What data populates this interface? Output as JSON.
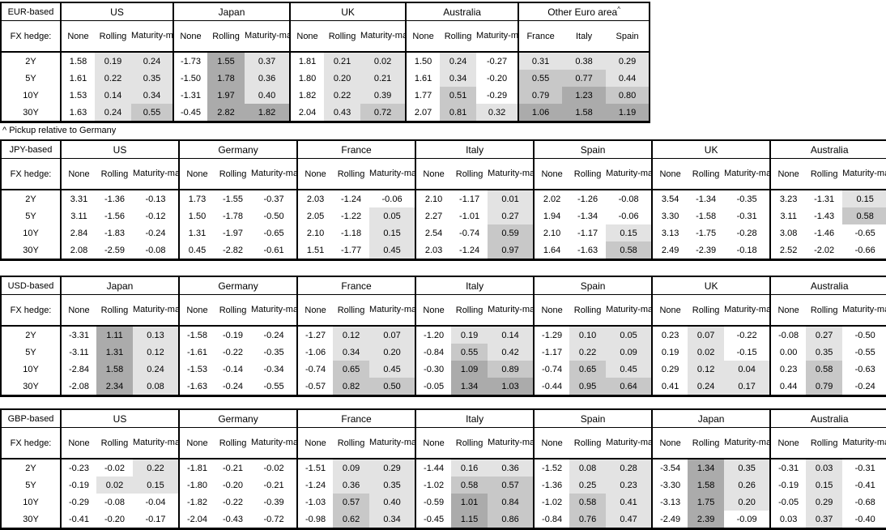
{
  "footnote": "^ Pickup relative to Germany",
  "legend": {
    "fx_hedge_label": "FX hedge:",
    "hedge_types": [
      "None",
      "Rolling",
      "Maturity-matched"
    ],
    "tenors": [
      "2Y",
      "5Y",
      "10Y",
      "30Y"
    ]
  },
  "shading": {
    "rule": "value<=0 white; 0<value<0.5 light; 0.5<=value<1.0 medium; value>=1.0 dark; None columns always white",
    "colors": {
      "white": "#ffffff",
      "light": "#e3e3e3",
      "medium": "#c8c8c8",
      "dark": "#ababab"
    }
  },
  "tables": [
    {
      "base": "EUR-based",
      "groups": [
        {
          "name": "US",
          "kind": "hedge",
          "rows": [
            [
              "1.58",
              "0.19",
              "0.24"
            ],
            [
              "1.61",
              "0.22",
              "0.35"
            ],
            [
              "1.53",
              "0.14",
              "0.34"
            ],
            [
              "1.63",
              "0.24",
              "0.55"
            ]
          ]
        },
        {
          "name": "Japan",
          "kind": "hedge",
          "rows": [
            [
              "-1.73",
              "1.55",
              "0.37"
            ],
            [
              "-1.50",
              "1.78",
              "0.36"
            ],
            [
              "-1.31",
              "1.97",
              "0.40"
            ],
            [
              "-0.45",
              "2.82",
              "1.82"
            ]
          ]
        },
        {
          "name": "UK",
          "kind": "hedge",
          "rows": [
            [
              "1.81",
              "0.21",
              "0.02"
            ],
            [
              "1.80",
              "0.20",
              "0.21"
            ],
            [
              "1.82",
              "0.22",
              "0.39"
            ],
            [
              "2.04",
              "0.43",
              "0.72"
            ]
          ]
        },
        {
          "name": "Australia",
          "kind": "hedge",
          "rows": [
            [
              "1.50",
              "0.24",
              "-0.27"
            ],
            [
              "1.61",
              "0.34",
              "-0.20"
            ],
            [
              "1.77",
              "0.51",
              "-0.29"
            ],
            [
              "2.07",
              "0.81",
              "0.32"
            ]
          ]
        },
        {
          "name": "Other Euro area",
          "sup": "^",
          "kind": "countries",
          "columns": [
            "France",
            "Italy",
            "Spain"
          ],
          "rows": [
            [
              "0.31",
              "0.38",
              "0.29"
            ],
            [
              "0.55",
              "0.77",
              "0.44"
            ],
            [
              "0.79",
              "1.23",
              "0.80"
            ],
            [
              "1.06",
              "1.58",
              "1.19"
            ]
          ]
        }
      ]
    },
    {
      "base": "JPY-based",
      "groups": [
        {
          "name": "US",
          "kind": "hedge",
          "rows": [
            [
              "3.31",
              "-1.36",
              "-0.13"
            ],
            [
              "3.11",
              "-1.56",
              "-0.12"
            ],
            [
              "2.84",
              "-1.83",
              "-0.24"
            ],
            [
              "2.08",
              "-2.59",
              "-0.08"
            ]
          ]
        },
        {
          "name": "Germany",
          "kind": "hedge",
          "rows": [
            [
              "1.73",
              "-1.55",
              "-0.37"
            ],
            [
              "1.50",
              "-1.78",
              "-0.50"
            ],
            [
              "1.31",
              "-1.97",
              "-0.65"
            ],
            [
              "0.45",
              "-2.82",
              "-0.61"
            ]
          ]
        },
        {
          "name": "France",
          "kind": "hedge",
          "rows": [
            [
              "2.03",
              "-1.24",
              "-0.06"
            ],
            [
              "2.05",
              "-1.22",
              "0.05"
            ],
            [
              "2.10",
              "-1.18",
              "0.15"
            ],
            [
              "1.51",
              "-1.77",
              "0.45"
            ]
          ]
        },
        {
          "name": "Italy",
          "kind": "hedge",
          "rows": [
            [
              "2.10",
              "-1.17",
              "0.01"
            ],
            [
              "2.27",
              "-1.01",
              "0.27"
            ],
            [
              "2.54",
              "-0.74",
              "0.59"
            ],
            [
              "2.03",
              "-1.24",
              "0.97"
            ]
          ]
        },
        {
          "name": "Spain",
          "kind": "hedge",
          "rows": [
            [
              "2.02",
              "-1.26",
              "-0.08"
            ],
            [
              "1.94",
              "-1.34",
              "-0.06"
            ],
            [
              "2.10",
              "-1.17",
              "0.15"
            ],
            [
              "1.64",
              "-1.63",
              "0.58"
            ]
          ]
        },
        {
          "name": "UK",
          "kind": "hedge",
          "rows": [
            [
              "3.54",
              "-1.34",
              "-0.35"
            ],
            [
              "3.30",
              "-1.58",
              "-0.31"
            ],
            [
              "3.13",
              "-1.75",
              "-0.28"
            ],
            [
              "2.49",
              "-2.39",
              "-0.18"
            ]
          ]
        },
        {
          "name": "Australia",
          "kind": "hedge",
          "rows": [
            [
              "3.23",
              "-1.31",
              "0.15"
            ],
            [
              "3.11",
              "-1.43",
              "0.58"
            ],
            [
              "3.08",
              "-1.46",
              "-0.65"
            ],
            [
              "2.52",
              "-2.02",
              "-0.66"
            ]
          ]
        }
      ]
    },
    {
      "base": "USD-based",
      "groups": [
        {
          "name": "Japan",
          "kind": "hedge",
          "rows": [
            [
              "-3.31",
              "1.11",
              "0.13"
            ],
            [
              "-3.11",
              "1.31",
              "0.12"
            ],
            [
              "-2.84",
              "1.58",
              "0.24"
            ],
            [
              "-2.08",
              "2.34",
              "0.08"
            ]
          ]
        },
        {
          "name": "Germany",
          "kind": "hedge",
          "rows": [
            [
              "-1.58",
              "-0.19",
              "-0.24"
            ],
            [
              "-1.61",
              "-0.22",
              "-0.35"
            ],
            [
              "-1.53",
              "-0.14",
              "-0.34"
            ],
            [
              "-1.63",
              "-0.24",
              "-0.55"
            ]
          ]
        },
        {
          "name": "France",
          "kind": "hedge",
          "rows": [
            [
              "-1.27",
              "0.12",
              "0.07"
            ],
            [
              "-1.06",
              "0.34",
              "0.20"
            ],
            [
              "-0.74",
              "0.65",
              "0.45"
            ],
            [
              "-0.57",
              "0.82",
              "0.50"
            ]
          ]
        },
        {
          "name": "Italy",
          "kind": "hedge",
          "rows": [
            [
              "-1.20",
              "0.19",
              "0.14"
            ],
            [
              "-0.84",
              "0.55",
              "0.42"
            ],
            [
              "-0.30",
              "1.09",
              "0.89"
            ],
            [
              "-0.05",
              "1.34",
              "1.03"
            ]
          ]
        },
        {
          "name": "Spain",
          "kind": "hedge",
          "rows": [
            [
              "-1.29",
              "0.10",
              "0.05"
            ],
            [
              "-1.17",
              "0.22",
              "0.09"
            ],
            [
              "-0.74",
              "0.65",
              "0.45"
            ],
            [
              "-0.44",
              "0.95",
              "0.64"
            ]
          ]
        },
        {
          "name": "UK",
          "kind": "hedge",
          "rows": [
            [
              "0.23",
              "0.07",
              "-0.22"
            ],
            [
              "0.19",
              "0.02",
              "-0.15"
            ],
            [
              "0.29",
              "0.12",
              "0.04"
            ],
            [
              "0.41",
              "0.24",
              "0.17"
            ]
          ]
        },
        {
          "name": "Australia",
          "kind": "hedge",
          "rows": [
            [
              "-0.08",
              "0.27",
              "-0.50"
            ],
            [
              "0.00",
              "0.35",
              "-0.55"
            ],
            [
              "0.23",
              "0.58",
              "-0.63"
            ],
            [
              "0.44",
              "0.79",
              "-0.24"
            ]
          ]
        }
      ]
    },
    {
      "base": "GBP-based",
      "groups": [
        {
          "name": "US",
          "kind": "hedge",
          "rows": [
            [
              "-0.23",
              "-0.02",
              "0.22"
            ],
            [
              "-0.19",
              "0.02",
              "0.15"
            ],
            [
              "-0.29",
              "-0.08",
              "-0.04"
            ],
            [
              "-0.41",
              "-0.20",
              "-0.17"
            ]
          ]
        },
        {
          "name": "Germany",
          "kind": "hedge",
          "rows": [
            [
              "-1.81",
              "-0.21",
              "-0.02"
            ],
            [
              "-1.80",
              "-0.20",
              "-0.21"
            ],
            [
              "-1.82",
              "-0.22",
              "-0.39"
            ],
            [
              "-2.04",
              "-0.43",
              "-0.72"
            ]
          ]
        },
        {
          "name": "France",
          "kind": "hedge",
          "rows": [
            [
              "-1.51",
              "0.09",
              "0.29"
            ],
            [
              "-1.24",
              "0.36",
              "0.35"
            ],
            [
              "-1.03",
              "0.57",
              "0.40"
            ],
            [
              "-0.98",
              "0.62",
              "0.34"
            ]
          ]
        },
        {
          "name": "Italy",
          "kind": "hedge",
          "rows": [
            [
              "-1.44",
              "0.16",
              "0.36"
            ],
            [
              "-1.02",
              "0.58",
              "0.57"
            ],
            [
              "-0.59",
              "1.01",
              "0.84"
            ],
            [
              "-0.45",
              "1.15",
              "0.86"
            ]
          ]
        },
        {
          "name": "Spain",
          "kind": "hedge",
          "rows": [
            [
              "-1.52",
              "0.08",
              "0.28"
            ],
            [
              "-1.36",
              "0.25",
              "0.23"
            ],
            [
              "-1.02",
              "0.58",
              "0.41"
            ],
            [
              "-0.84",
              "0.76",
              "0.47"
            ]
          ]
        },
        {
          "name": "Japan",
          "kind": "hedge",
          "rows": [
            [
              "-3.54",
              "1.34",
              "0.35"
            ],
            [
              "-3.30",
              "1.58",
              "0.26"
            ],
            [
              "-3.13",
              "1.75",
              "0.20"
            ],
            [
              "-2.49",
              "2.39",
              "-0.09"
            ]
          ]
        },
        {
          "name": "Australia",
          "kind": "hedge",
          "rows": [
            [
              "-0.31",
              "0.03",
              "-0.31"
            ],
            [
              "-0.19",
              "0.15",
              "-0.41"
            ],
            [
              "-0.05",
              "0.29",
              "-0.68"
            ],
            [
              "0.03",
              "0.37",
              "-0.40"
            ]
          ]
        }
      ]
    }
  ]
}
